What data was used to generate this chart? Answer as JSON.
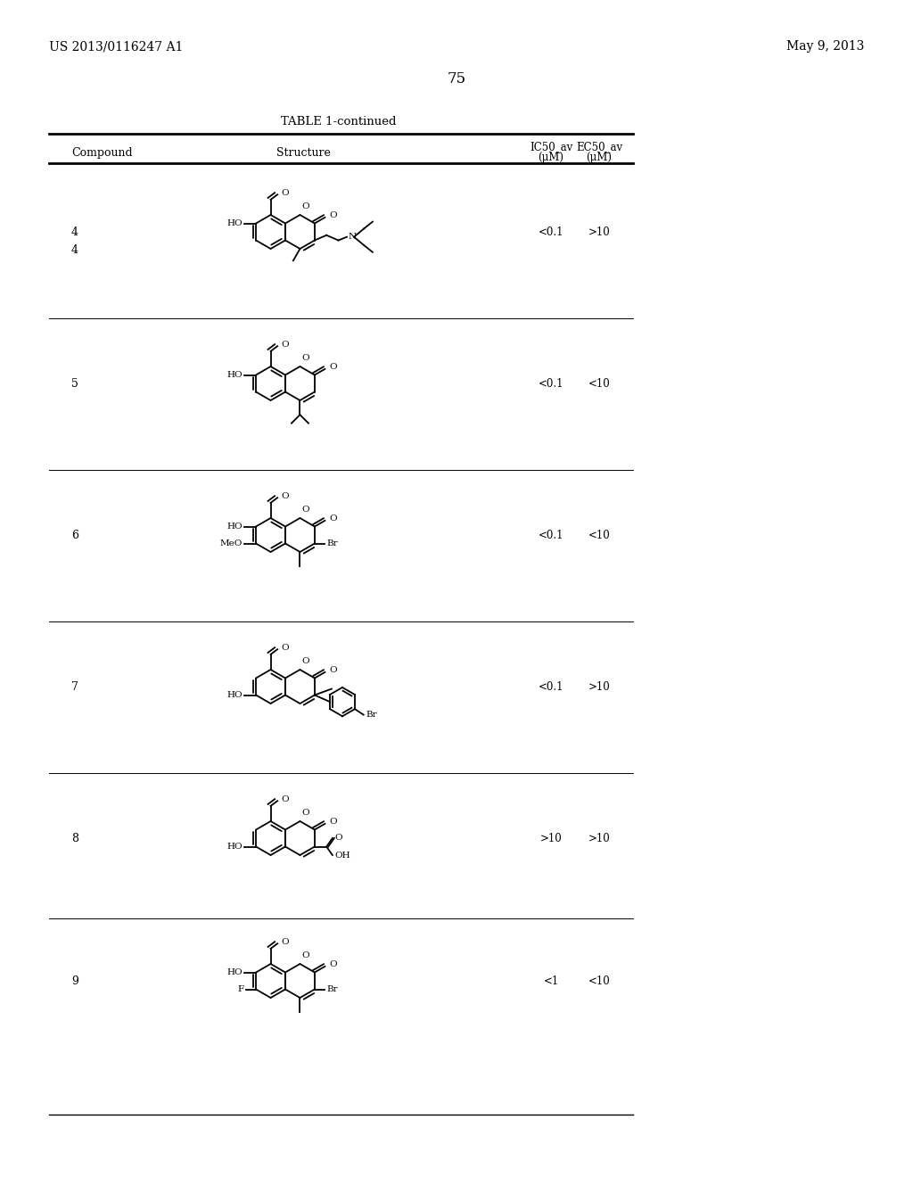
{
  "page_header_left": "US 2013/0116247 A1",
  "page_header_right": "May 9, 2013",
  "page_number": "75",
  "table_title": "TABLE 1-continued",
  "col_headers": [
    "Compound",
    "Structure",
    "IC50_av\n(μM)",
    "EC50_av\n(μM)"
  ],
  "compounds": [
    4,
    5,
    6,
    7,
    8,
    9
  ],
  "ic50_values": [
    "<0.1",
    "<0.1",
    "<0.1",
    "<0.1",
    ">10",
    "<1"
  ],
  "ec50_values": [
    ">10",
    "<10",
    "<10",
    ">10",
    ">10",
    "<10"
  ],
  "bg_color": "#ffffff",
  "text_color": "#000000",
  "font_size_header": 9,
  "font_size_body": 9,
  "font_size_page": 10
}
